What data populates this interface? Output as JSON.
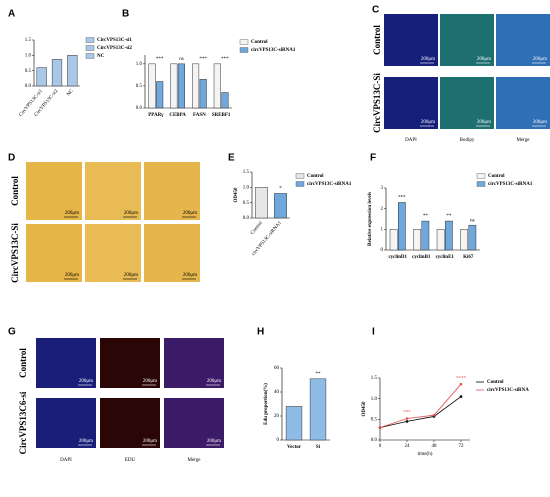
{
  "chart_data": [
    {
      "panel": "A",
      "type": "bar",
      "categories": [
        "CircVPS13C-si1",
        "CircVPS13C-si2",
        "NC"
      ],
      "values": [
        0.6,
        0.87,
        1.0
      ],
      "color": "#a9c8e8",
      "ylim": [
        0,
        1.5
      ],
      "yticks": [
        {
          "value": 0,
          "label": "0.0"
        },
        {
          "value": 0.5,
          "label": "0.5"
        },
        {
          "value": 1,
          "label": "1.0"
        },
        {
          "value": 1.5,
          "label": "1.5"
        }
      ],
      "legend": true
    },
    {
      "panel": "B",
      "type": "bar",
      "categories": [
        "PPARγ",
        "CEBPA",
        "FASN",
        "SREBF1"
      ],
      "series": [
        {
          "name": "Control",
          "color": "#f4f4f4",
          "values": [
            1.0,
            1.0,
            1.0,
            1.0
          ]
        },
        {
          "name": "circVPS13C-siRNA1",
          "color": "#6fa8dc",
          "values": [
            0.6,
            1.0,
            0.65,
            0.35
          ]
        }
      ],
      "annotations": [
        "***",
        "ns",
        "***",
        "***"
      ],
      "ylim": [
        0,
        1.2
      ],
      "yticks": [
        {
          "value": 0,
          "label": "0.0"
        },
        {
          "value": 0.5,
          "label": "0.5"
        },
        {
          "value": 1,
          "label": "1.0"
        }
      ],
      "legend": true
    },
    {
      "panel": "E",
      "type": "bar",
      "categories": [
        "Control",
        "circVPS13C-siRNA1"
      ],
      "values": [
        1.0,
        0.8
      ],
      "colors": [
        "#e6e6e6",
        "#6fa8dc"
      ],
      "annotations": [
        null,
        "*"
      ],
      "ylabel": "OD450",
      "ylim": [
        0,
        1.5
      ],
      "yticks": [
        {
          "value": 0,
          "label": "0.0"
        },
        {
          "value": 0.5,
          "label": "0.5"
        },
        {
          "value": 1,
          "label": "1.0"
        },
        {
          "value": 1.5,
          "label": "1.5"
        }
      ],
      "legend": true
    },
    {
      "panel": "F",
      "type": "bar",
      "categories": [
        "cyclinD1",
        "cyclinB1",
        "cyclinE1",
        "Ki67"
      ],
      "series": [
        {
          "name": "Control",
          "color": "#f4f4f4",
          "values": [
            1.0,
            1.0,
            1.0,
            1.0
          ]
        },
        {
          "name": "circVPS13C-siRNA1",
          "color": "#6fa8dc",
          "values": [
            2.3,
            1.4,
            1.4,
            1.2
          ]
        }
      ],
      "annotations": [
        "***",
        "**",
        "**",
        "ns"
      ],
      "ylabel": "Relative expression levels",
      "ylim": [
        0,
        3
      ],
      "yticks": [
        0,
        1,
        2,
        3
      ],
      "legend": true
    },
    {
      "panel": "H",
      "type": "bar",
      "categories": [
        "Vector",
        "Si"
      ],
      "values": [
        28,
        51
      ],
      "color": "#8fbce6",
      "annotations": [
        null,
        "**"
      ],
      "ylabel": "Edu proportion(%)",
      "ylim": [
        0,
        60
      ],
      "yticks": [
        0,
        20,
        40,
        60
      ],
      "legend": false
    },
    {
      "panel": "I",
      "type": "line",
      "x": [
        0,
        24,
        48,
        72
      ],
      "series": [
        {
          "name": "Control",
          "color": "#000000",
          "values": [
            0.3,
            0.45,
            0.57,
            1.05
          ]
        },
        {
          "name": "circVPS13C-siRNA",
          "color": "#e05050",
          "values": [
            0.3,
            0.52,
            0.6,
            1.35
          ]
        }
      ],
      "annotations": [
        {
          "x": 24,
          "text": "***"
        },
        {
          "x": 72,
          "text": "****"
        }
      ],
      "xlabel": "time(h)",
      "ylabel": "OD450",
      "xlim": [
        0,
        80
      ],
      "xticks": [
        0,
        24,
        48,
        72
      ],
      "ylim": [
        0,
        1.5
      ],
      "yticks": [
        {
          "value": 0,
          "label": "0.0"
        },
        {
          "value": 0.5,
          "label": "0.5"
        },
        {
          "value": 1,
          "label": "1.0"
        },
        {
          "value": 1.5,
          "label": "1.5"
        }
      ],
      "legend": true
    }
  ],
  "figures": [
    {
      "panel": "C",
      "rows": [
        "Control",
        "CircVPS13C-Si"
      ],
      "cols": [
        "DAPI",
        "Bodipy",
        "Merge"
      ],
      "scale": "200μm"
    },
    {
      "panel": "D",
      "rows": [
        "Control",
        "CircVPS13C-Si"
      ],
      "scale": "200μm"
    },
    {
      "panel": "G",
      "rows": [
        "Control",
        "CircVPS13C6-si"
      ],
      "cols": [
        "DAPI",
        "EDU",
        "Merge"
      ],
      "scale": "200μm"
    }
  ]
}
